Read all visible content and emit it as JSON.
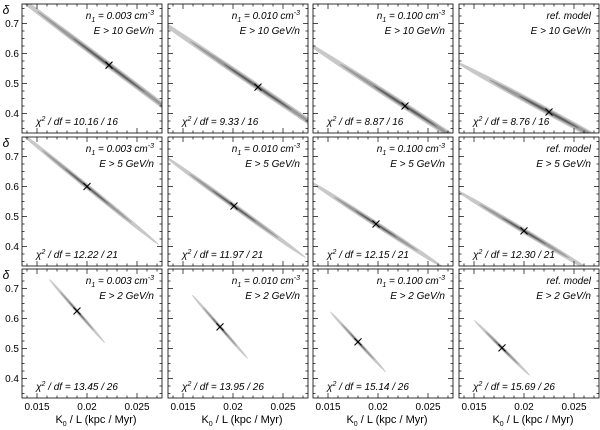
{
  "chart_data": {
    "type": "scatter",
    "description_grid": {
      "rows": 3,
      "cols": 4
    },
    "xlabel": "K",
    "xlabel_sub": "0",
    "xlabel_rest": " / L   (kpc / Myr)",
    "ylabel": "δ",
    "xlim": [
      0.0135,
      0.0275
    ],
    "ylim": [
      0.335,
      0.765
    ],
    "xticks": [
      0.015,
      0.02,
      0.025
    ],
    "xtick_labels": [
      "0.015",
      "0.02",
      "0.025"
    ],
    "yticks": [
      0.4,
      0.5,
      0.6,
      0.7
    ],
    "ytick_labels": [
      "0.4",
      "0.5",
      "0.6",
      "0.7"
    ],
    "confidence_fills": [
      "#c8c8c8",
      "#9a9a9a",
      "#5e5e5e"
    ],
    "panels": [
      {
        "row": 0,
        "col": 0,
        "model": "n",
        "sub": "1",
        "eq": " = 0.003 cm",
        "sup": "-3",
        "energy": "E > 10 GeV/n",
        "chi_label": "χ",
        "chi_sup": "2",
        "chi_rest": " / df = 10.16 / 16",
        "best": [
          0.0222,
          0.561
        ],
        "slope": -25.0,
        "halfwidth": [
          0.0115,
          0.0072,
          0.0036
        ],
        "thickness": [
          0.013,
          0.008,
          0.004
        ]
      },
      {
        "row": 0,
        "col": 1,
        "model": "n",
        "sub": "1",
        "eq": " = 0.010 cm",
        "sup": "-3",
        "energy": "E > 10 GeV/n",
        "chi_label": "χ",
        "chi_sup": "2",
        "chi_rest": " / df = 9.33 / 16",
        "best": [
          0.0225,
          0.488
        ],
        "slope": -22.5,
        "halfwidth": [
          0.0112,
          0.0068,
          0.0034
        ],
        "thickness": [
          0.013,
          0.008,
          0.004
        ]
      },
      {
        "row": 0,
        "col": 2,
        "model": "n",
        "sub": "1",
        "eq": " = 0.100 cm",
        "sup": "-3",
        "energy": "E > 10 GeV/n",
        "chi_label": "χ",
        "chi_sup": "2",
        "chi_rest": " / df = 8.87 / 16",
        "best": [
          0.0227,
          0.425
        ],
        "slope": -21.5,
        "halfwidth": [
          0.0105,
          0.0065,
          0.0032
        ],
        "thickness": [
          0.013,
          0.008,
          0.004
        ]
      },
      {
        "row": 0,
        "col": 3,
        "model": "ref. model",
        "sub": "",
        "eq": "",
        "sup": "",
        "energy": "E > 10 GeV/n",
        "chi_label": "χ",
        "chi_sup": "2",
        "chi_rest": " / df = 8.76 / 16",
        "best": [
          0.0225,
          0.405
        ],
        "slope": -18.0,
        "halfwidth": [
          0.0095,
          0.006,
          0.003
        ],
        "thickness": [
          0.013,
          0.008,
          0.004
        ]
      },
      {
        "row": 1,
        "col": 0,
        "model": "n",
        "sub": "1",
        "eq": " = 0.003 cm",
        "sup": "-3",
        "energy": "E > 5 GeV/n",
        "chi_label": "χ",
        "chi_sup": "2",
        "chi_rest": " / df = 12.22 / 21",
        "best": [
          0.02,
          0.6
        ],
        "slope": -27.0,
        "halfwidth": [
          0.0072,
          0.0045,
          0.0022
        ],
        "thickness": [
          0.011,
          0.0065,
          0.0032
        ]
      },
      {
        "row": 1,
        "col": 1,
        "model": "n",
        "sub": "1",
        "eq": " = 0.010 cm",
        "sup": "-3",
        "energy": "E > 5 GeV/n",
        "chi_label": "χ",
        "chi_sup": "2",
        "chi_rest": " / df = 11.97 / 21",
        "best": [
          0.0201,
          0.535
        ],
        "slope": -24.0,
        "halfwidth": [
          0.0072,
          0.0045,
          0.0022
        ],
        "thickness": [
          0.011,
          0.0065,
          0.0032
        ]
      },
      {
        "row": 1,
        "col": 2,
        "model": "n",
        "sub": "1",
        "eq": " = 0.100 cm",
        "sup": "-3",
        "energy": "E > 5 GeV/n",
        "chi_label": "χ",
        "chi_sup": "2",
        "chi_rest": " / df = 12.15 / 21",
        "best": [
          0.0198,
          0.475
        ],
        "slope": -21.5,
        "halfwidth": [
          0.0068,
          0.0042,
          0.0021
        ],
        "thickness": [
          0.011,
          0.0065,
          0.0032
        ]
      },
      {
        "row": 1,
        "col": 3,
        "model": "ref. model",
        "sub": "",
        "eq": "",
        "sup": "",
        "energy": "E > 5 GeV/n",
        "chi_label": "χ",
        "chi_sup": "2",
        "chi_rest": " / df = 12.30 / 21",
        "best": [
          0.02,
          0.452
        ],
        "slope": -20.0,
        "halfwidth": [
          0.0072,
          0.0045,
          0.0022
        ],
        "thickness": [
          0.011,
          0.0065,
          0.0032
        ]
      },
      {
        "row": 2,
        "col": 0,
        "model": "n",
        "sub": "1",
        "eq": " = 0.003 cm",
        "sup": "-3",
        "energy": "E > 2 GeV/n",
        "chi_label": "χ",
        "chi_sup": "2",
        "chi_rest": " / df = 13.45 / 26",
        "best": [
          0.019,
          0.625
        ],
        "slope": -38.0,
        "halfwidth": [
          0.0028,
          0.0017,
          0.0008
        ],
        "thickness": [
          0.0085,
          0.005,
          0.0025
        ]
      },
      {
        "row": 2,
        "col": 1,
        "model": "n",
        "sub": "1",
        "eq": " = 0.010 cm",
        "sup": "-3",
        "energy": "E > 2 GeV/n",
        "chi_label": "χ",
        "chi_sup": "2",
        "chi_rest": " / df = 13.95 / 26",
        "best": [
          0.0187,
          0.572
        ],
        "slope": -38.0,
        "halfwidth": [
          0.0028,
          0.0017,
          0.0008
        ],
        "thickness": [
          0.0085,
          0.005,
          0.0025
        ]
      },
      {
        "row": 2,
        "col": 2,
        "model": "n",
        "sub": "1",
        "eq": " = 0.100 cm",
        "sup": "-3",
        "energy": "E > 2 GeV/n",
        "chi_label": "χ",
        "chi_sup": "2",
        "chi_rest": " / df = 15.14 / 26",
        "best": [
          0.018,
          0.522
        ],
        "slope": -36.0,
        "halfwidth": [
          0.0028,
          0.0017,
          0.0008
        ],
        "thickness": [
          0.0085,
          0.005,
          0.0025
        ]
      },
      {
        "row": 2,
        "col": 3,
        "model": "ref. model",
        "sub": "",
        "eq": "",
        "sup": "",
        "energy": "E > 2 GeV/n",
        "chi_label": "χ",
        "chi_sup": "2",
        "chi_rest": " / df = 15.69 / 26",
        "best": [
          0.0178,
          0.502
        ],
        "slope": -33.0,
        "halfwidth": [
          0.0028,
          0.0017,
          0.0008
        ],
        "thickness": [
          0.0085,
          0.005,
          0.0025
        ]
      }
    ]
  }
}
